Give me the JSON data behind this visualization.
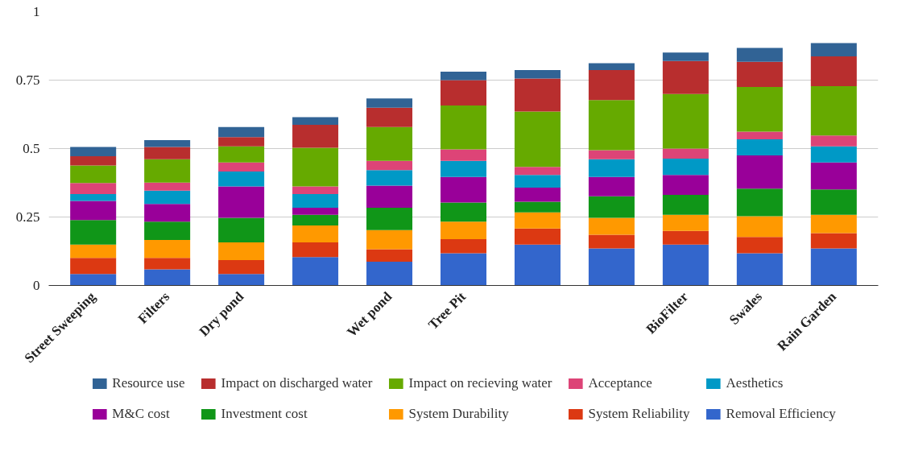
{
  "chart_data": {
    "type": "bar",
    "stacked": true,
    "categories": [
      "Street Sweeping",
      "Filters",
      "Dry pond",
      null,
      "Wet pond",
      "Tree Pit",
      null,
      null,
      "BioFilter",
      "Swales",
      "Rain Garden"
    ],
    "ylim": [
      0,
      1
    ],
    "yticks": [
      0,
      0.25,
      0.5,
      0.75,
      1
    ],
    "grid": "y",
    "legend": "bottom",
    "series": [
      {
        "name": "Removal Efficiency",
        "color": "#3366cc",
        "values": [
          0.042,
          0.059,
          0.042,
          0.104,
          0.087,
          0.118,
          0.149,
          0.135,
          0.149,
          0.118,
          0.135
        ]
      },
      {
        "name": "System Reliability",
        "color": "#dc3912",
        "values": [
          0.059,
          0.042,
          0.051,
          0.053,
          0.045,
          0.051,
          0.059,
          0.05,
          0.05,
          0.059,
          0.056
        ]
      },
      {
        "name": "System Durability",
        "color": "#ff9900",
        "values": [
          0.048,
          0.065,
          0.064,
          0.062,
          0.07,
          0.064,
          0.059,
          0.062,
          0.059,
          0.076,
          0.067
        ]
      },
      {
        "name": "Investment cost",
        "color": "#109618",
        "values": [
          0.09,
          0.067,
          0.09,
          0.039,
          0.082,
          0.07,
          0.039,
          0.079,
          0.073,
          0.101,
          0.093
        ]
      },
      {
        "name": "M&C cost",
        "color": "#990099",
        "values": [
          0.07,
          0.065,
          0.115,
          0.026,
          0.081,
          0.093,
          0.051,
          0.07,
          0.073,
          0.121,
          0.098
        ]
      },
      {
        "name": "Aesthetics",
        "color": "#0099c6",
        "values": [
          0.025,
          0.048,
          0.054,
          0.05,
          0.056,
          0.059,
          0.047,
          0.065,
          0.059,
          0.059,
          0.059
        ]
      },
      {
        "name": "Acceptance",
        "color": "#dd4477",
        "values": [
          0.04,
          0.03,
          0.033,
          0.028,
          0.034,
          0.042,
          0.029,
          0.033,
          0.037,
          0.028,
          0.04
        ]
      },
      {
        "name": "Impact on recieving water",
        "color": "#66aa00",
        "values": [
          0.064,
          0.085,
          0.059,
          0.141,
          0.124,
          0.16,
          0.202,
          0.183,
          0.199,
          0.163,
          0.18
        ]
      },
      {
        "name": "Impact on discharged water",
        "color": "#b82e2e",
        "values": [
          0.034,
          0.045,
          0.034,
          0.084,
          0.07,
          0.093,
          0.121,
          0.11,
          0.121,
          0.092,
          0.109
        ]
      },
      {
        "name": "Resource use",
        "color": "#316395",
        "values": [
          0.034,
          0.025,
          0.037,
          0.028,
          0.034,
          0.031,
          0.031,
          0.025,
          0.031,
          0.051,
          0.048
        ]
      }
    ]
  }
}
